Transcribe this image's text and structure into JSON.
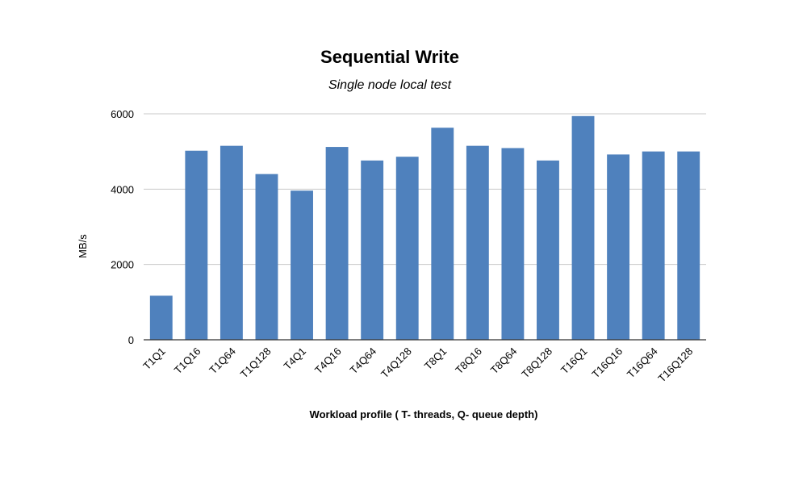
{
  "chart_data": {
    "type": "bar",
    "title": "Sequential Write",
    "subtitle": "Single node local test",
    "xlabel": "Workload profile ( T- threads, Q- queue depth)",
    "ylabel": "MB/s",
    "ylim": [
      0,
      6000
    ],
    "yticks": [
      0,
      2000,
      4000,
      6000
    ],
    "grid": true,
    "legend": "none",
    "bar_color": "#4f81bd",
    "categories": [
      "T1Q1",
      "T1Q16",
      "T1Q64",
      "T1Q128",
      "T4Q1",
      "T4Q16",
      "T4Q64",
      "T4Q128",
      "T8Q1",
      "T8Q16",
      "T8Q64",
      "T8Q128",
      "T16Q1",
      "T16Q16",
      "T16Q64",
      "T16Q128"
    ],
    "values": [
      1170,
      5020,
      5150,
      4400,
      3960,
      5120,
      4760,
      4860,
      5630,
      5150,
      5090,
      4760,
      5940,
      4920,
      5000,
      5000
    ]
  }
}
